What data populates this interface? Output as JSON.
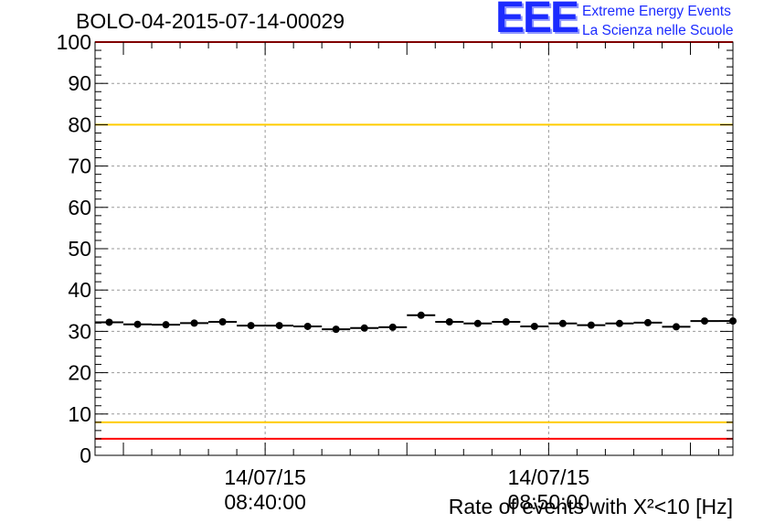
{
  "title": "BOLO-04-2015-07-14-00029",
  "logo": {
    "mark": "EEE",
    "line1": "Extreme Energy Events",
    "line2": "La Scienza nelle Scuole"
  },
  "chart_data": {
    "type": "scatter",
    "title": "BOLO-04-2015-07-14-00029",
    "ylabel": "Rate of events with X²<10 [Hz]",
    "xlabel": "",
    "ylim": [
      0,
      100
    ],
    "yticks": [
      0,
      10,
      20,
      30,
      40,
      50,
      60,
      70,
      80,
      90,
      100
    ],
    "xlim": [
      "14/07/15 08:34:00",
      "14/07/15 08:56:30"
    ],
    "xtick_labels": [
      {
        "date": "14/07/15",
        "time": "08:40:00",
        "at": "14/07/15 08:40:00"
      },
      {
        "date": "14/07/15",
        "time": "08:50:00",
        "at": "14/07/15 08:50:00"
      }
    ],
    "grid": true,
    "reference_lines": [
      {
        "value": 100,
        "color": "#ff0000"
      },
      {
        "value": 80,
        "color": "#ffcc00"
      },
      {
        "value": 8,
        "color": "#ffcc00"
      },
      {
        "value": 4,
        "color": "#ff0000"
      }
    ],
    "bin_width_minutes": 1,
    "series": [
      {
        "x": [
          "08:34:30",
          "08:35:30",
          "08:36:30",
          "08:37:30",
          "08:38:30",
          "08:39:30",
          "08:40:30",
          "08:41:30",
          "08:42:30",
          "08:43:30",
          "08:44:30",
          "08:45:30",
          "08:46:30",
          "08:47:30",
          "08:48:30",
          "08:49:30",
          "08:50:30",
          "08:51:30",
          "08:52:30",
          "08:53:30",
          "08:54:30",
          "08:55:30",
          "08:56:30"
        ],
        "values": [
          32.2,
          31.7,
          31.6,
          32.0,
          32.3,
          31.4,
          31.4,
          31.2,
          30.5,
          30.8,
          31.0,
          33.9,
          32.3,
          31.9,
          32.3,
          31.2,
          31.9,
          31.5,
          31.9,
          32.1,
          31.1,
          32.5,
          32.5
        ],
        "color": "#000000"
      }
    ]
  }
}
